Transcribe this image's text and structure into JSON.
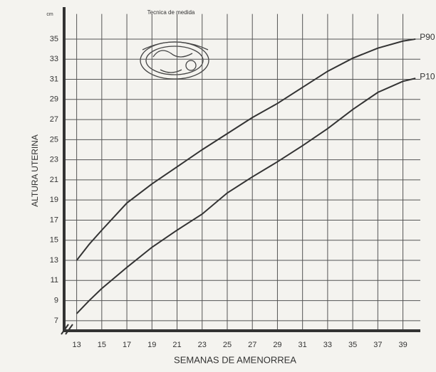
{
  "chart_data": {
    "type": "line",
    "title": "Tecnica de medida",
    "x_label": "SEMANAS DE AMENORREA",
    "y_label": "ALTURA UTERINA",
    "y_unit": "cm",
    "x": [
      13,
      14,
      15,
      17,
      19,
      21,
      23,
      25,
      27,
      29,
      31,
      33,
      35,
      37,
      39,
      40
    ],
    "series": [
      {
        "name": "P90",
        "color": "#333333",
        "values": [
          13,
          14.6,
          16,
          18.7,
          20.6,
          22.3,
          24,
          25.6,
          27.2,
          28.6,
          30.2,
          31.8,
          33.1,
          34.1,
          34.8,
          35
        ]
      },
      {
        "name": "P10",
        "color": "#333333",
        "values": [
          7.7,
          9,
          10.2,
          12.3,
          14.3,
          16,
          17.6,
          19.7,
          21.3,
          22.8,
          24.4,
          26.1,
          28,
          29.7,
          30.8,
          31.1
        ]
      }
    ],
    "xlim": [
      12,
      40.5
    ],
    "ylim": [
      6,
      37.5
    ],
    "xticks": [
      13,
      15,
      17,
      19,
      21,
      23,
      25,
      27,
      29,
      31,
      33,
      35,
      37,
      39
    ],
    "yticks": [
      7,
      9,
      11,
      13,
      15,
      17,
      19,
      21,
      23,
      25,
      27,
      29,
      31,
      33,
      35
    ],
    "grid": true
  }
}
